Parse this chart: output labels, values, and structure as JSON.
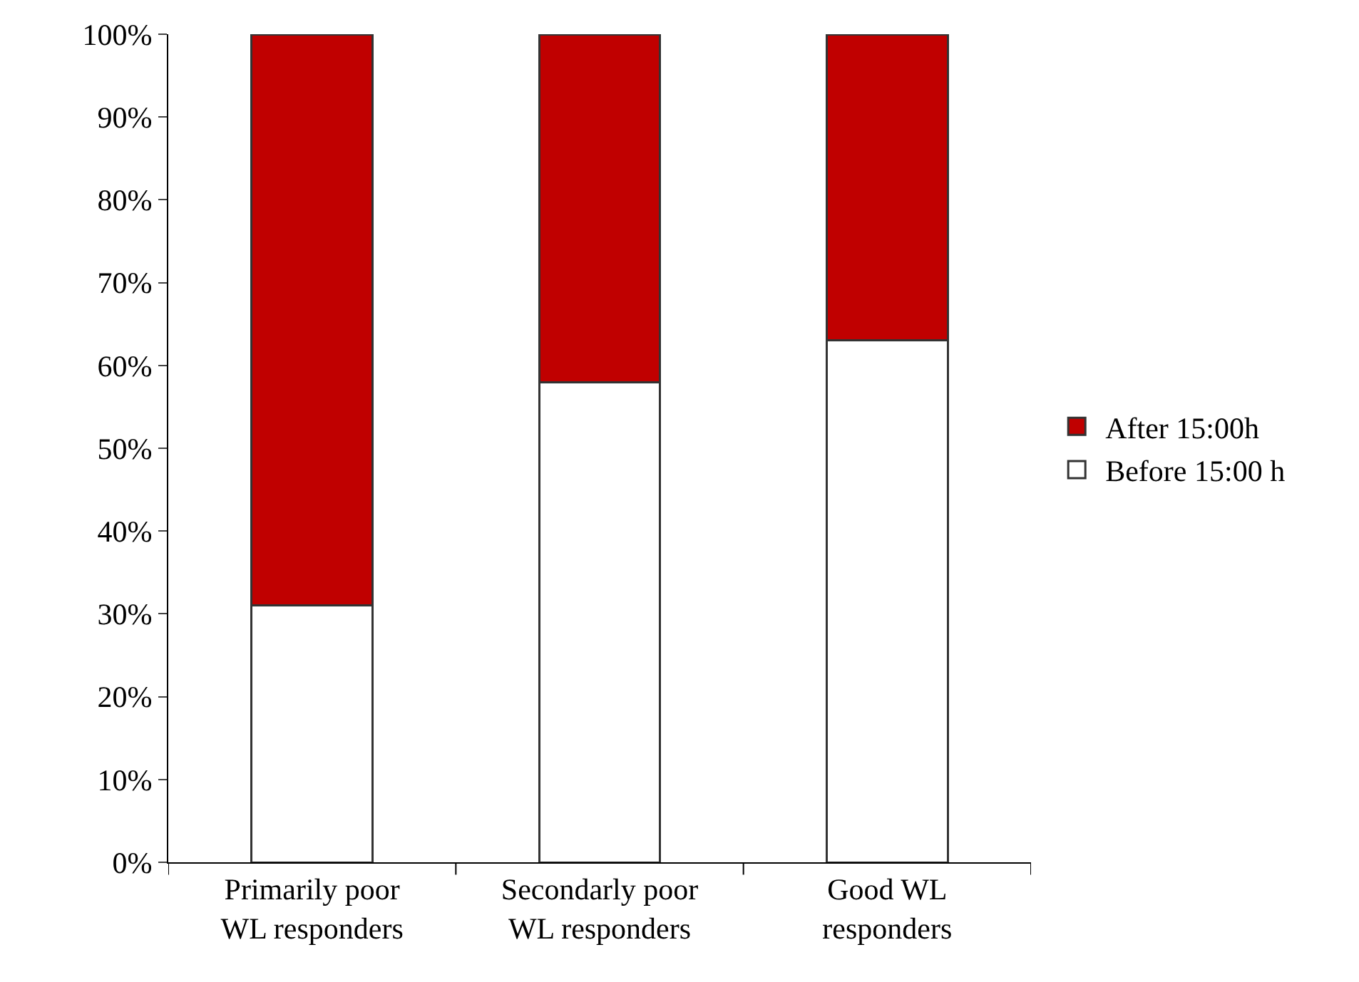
{
  "chart_data": {
    "type": "bar",
    "stacked": true,
    "categories": [
      "Primarily poor WL responders",
      "Secondarly poor WL responders",
      "Good WL responders"
    ],
    "series": [
      {
        "name": "Before 15:00 h",
        "color": "#ffffff",
        "values": [
          31,
          58,
          63
        ]
      },
      {
        "name": "After 15:00h",
        "color": "#c00000",
        "values": [
          69,
          42,
          37
        ]
      }
    ],
    "ylim": [
      0,
      100
    ],
    "yticks": [
      {
        "value": 0,
        "label": "0%"
      },
      {
        "value": 10,
        "label": "10%"
      },
      {
        "value": 20,
        "label": "20%"
      },
      {
        "value": 30,
        "label": "30%"
      },
      {
        "value": 40,
        "label": "40%"
      },
      {
        "value": 50,
        "label": "50%"
      },
      {
        "value": 60,
        "label": "60%"
      },
      {
        "value": 70,
        "label": "70%"
      },
      {
        "value": 80,
        "label": "80%"
      },
      {
        "value": 90,
        "label": "90%"
      },
      {
        "value": 100,
        "label": "100%"
      }
    ],
    "legend": "right"
  }
}
